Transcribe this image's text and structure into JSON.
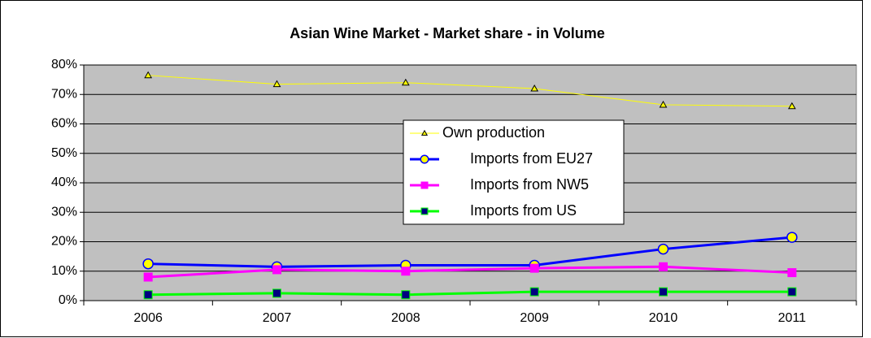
{
  "chart_data": {
    "type": "line",
    "title": "Asian   Wine Market  -  Market share  -  in Volume",
    "categories": [
      "2006",
      "2007",
      "2008",
      "2009",
      "2010",
      "2011"
    ],
    "series": [
      {
        "name": "Own production",
        "color": "#ffff00",
        "marker": "triangle",
        "marker_fill": "#ffff00",
        "values": [
          76.5,
          73.5,
          74,
          72,
          66.5,
          66
        ]
      },
      {
        "name": "Imports from EU27",
        "color": "#0000ff",
        "marker": "circle",
        "marker_fill": "#ffff00",
        "values": [
          12.5,
          11.5,
          12,
          12,
          17.5,
          21.5
        ]
      },
      {
        "name": "Imports from NW5",
        "color": "#ff00ff",
        "marker": "square",
        "marker_fill": "#ff00ff",
        "values": [
          8,
          10.5,
          10,
          11,
          11.5,
          9.5
        ]
      },
      {
        "name": "Imports from US",
        "color": "#00ff00",
        "marker": "square",
        "marker_fill": "#000080",
        "values": [
          2,
          2.5,
          2,
          3,
          3,
          3
        ]
      }
    ],
    "ylim": [
      0,
      80
    ],
    "yticks": [
      {
        "value": 0,
        "label": "0%"
      },
      {
        "value": 10,
        "label": "10%"
      },
      {
        "value": 20,
        "label": "20%"
      },
      {
        "value": 30,
        "label": "30%"
      },
      {
        "value": 40,
        "label": "40%"
      },
      {
        "value": 50,
        "label": "50%"
      },
      {
        "value": 60,
        "label": "60%"
      },
      {
        "value": 70,
        "label": "70%"
      },
      {
        "value": 80,
        "label": "80%"
      }
    ],
    "grid": true,
    "background": "#c0c0c0",
    "legend": "center"
  }
}
